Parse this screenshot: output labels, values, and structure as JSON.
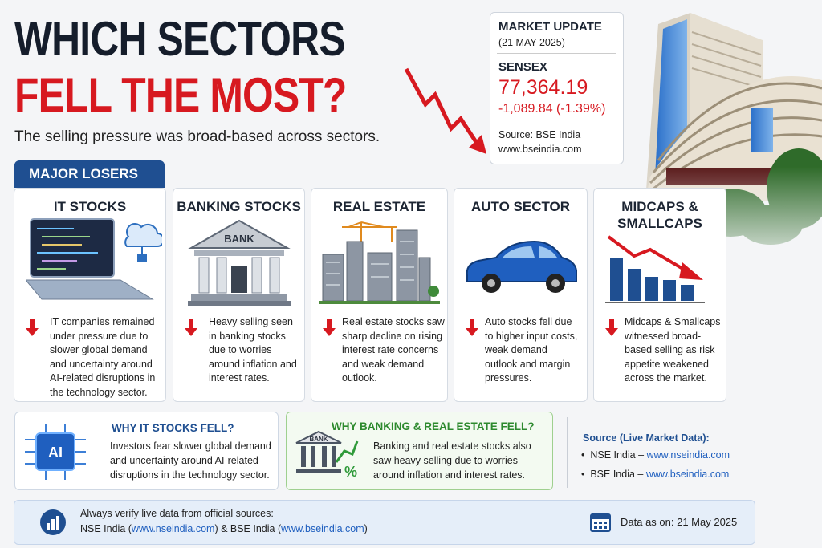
{
  "header": {
    "title_line1": "WHICH SECTORS",
    "title_line2": "FELL THE MOST?",
    "subtitle": "The selling pressure was broad-based across sectors."
  },
  "market_update": {
    "heading": "MARKET UPDATE",
    "date": "(21 MAY 2025)",
    "index": "SENSEX",
    "value": "77,364.19",
    "change": "-1,089.84 (-1.39%)",
    "source": "Source: BSE India",
    "url": "www.bseindia.com"
  },
  "section_label": "MAJOR LOSERS",
  "sectors": [
    {
      "title": "IT STOCKS",
      "text": "IT companies remained under pressure due to slower global demand and uncertainty around AI-related disruptions in the technology sector."
    },
    {
      "title": "BANKING STOCKS",
      "illustration_label": "BANK",
      "text": "Heavy selling seen in banking stocks due to worries around inflation and interest rates."
    },
    {
      "title": "REAL ESTATE",
      "text": "Real estate stocks saw sharp decline on rising interest rate concerns and weak demand outlook."
    },
    {
      "title": "AUTO SECTOR",
      "text": "Auto stocks fell due to higher input costs, weak demand outlook and margin pressures."
    },
    {
      "title": "MIDCAPS & SMALLCAPS",
      "text": "Midcaps & Smallcaps witnessed broad-based selling as risk appetite weakened across the market."
    }
  ],
  "explainers": [
    {
      "icon_label": "AI",
      "title": "WHY IT STOCKS FELL?",
      "text": "Investors fear slower global demand and uncertainty around AI-related disruptions in the technology sector."
    },
    {
      "icon_label": "BANK",
      "icon_symbol": "%",
      "title": "WHY BANKING & REAL ESTATE FELL?",
      "text": "Banking and real estate stocks also saw heavy selling due to worries around inflation and interest rates."
    }
  ],
  "sources": {
    "heading": "Source (Live Market Data):",
    "items": [
      {
        "name": "NSE India –",
        "url": "www.nseindia.com"
      },
      {
        "name": "BSE India –",
        "url": "www.bseindia.com"
      }
    ]
  },
  "footer": {
    "note": "Always verify live data from official sources:",
    "parts": [
      "NSE India (",
      "www.nseindia.com",
      ") & BSE India (",
      "www.bseindia.com",
      ")"
    ],
    "date": "Data as on: 21 May 2025"
  }
}
